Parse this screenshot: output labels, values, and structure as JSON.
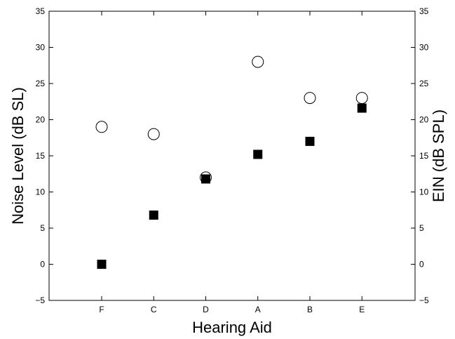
{
  "chart_data": {
    "type": "scatter",
    "title": "",
    "xlabel": "Hearing Aid",
    "ylabel": "Noise Level (dB SL)",
    "ylabel_right": "EIN (dB SPL)",
    "categories": [
      "F",
      "C",
      "D",
      "A",
      "B",
      "E"
    ],
    "ylim": [
      -5,
      35
    ],
    "yticks": [
      -5,
      0,
      5,
      10,
      15,
      20,
      25,
      30,
      35
    ],
    "grid": false,
    "legend": "none",
    "series": [
      {
        "marker": "open-circle",
        "color": "#000000",
        "values": [
          19,
          18,
          12,
          28,
          23,
          23
        ]
      },
      {
        "marker": "filled-square",
        "color": "#000000",
        "values": [
          0,
          6.8,
          11.8,
          15.2,
          17,
          21.6
        ]
      }
    ]
  }
}
